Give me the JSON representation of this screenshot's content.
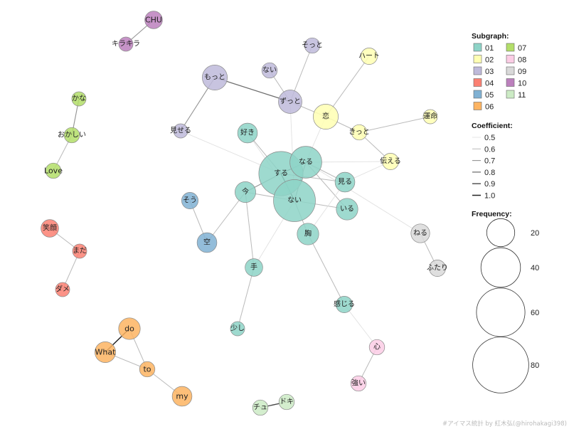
{
  "colors": {
    "01": "#8dd3c7",
    "02": "#ffffb3",
    "03": "#bebada",
    "04": "#fb8072",
    "05": "#80b1d3",
    "06": "#fdb462",
    "07": "#b3de69",
    "08": "#fccde5",
    "09": "#d9d9d9",
    "10": "#bc80bd",
    "11": "#ccebc5"
  },
  "nodes": [
    {
      "id": "CHU",
      "label": "CHU",
      "group": "10",
      "freq": 8
    },
    {
      "id": "kirakira",
      "label": "キラキラ",
      "group": "10",
      "freq": 5
    },
    {
      "id": "kana",
      "label": "かな",
      "group": "07",
      "freq": 5
    },
    {
      "id": "okashii",
      "label": "おかしい",
      "group": "07",
      "freq": 6
    },
    {
      "id": "love",
      "label": "Love",
      "group": "07",
      "freq": 6
    },
    {
      "id": "egao",
      "label": "笑顔",
      "group": "04",
      "freq": 8
    },
    {
      "id": "mada",
      "label": "まだ",
      "group": "04",
      "freq": 5
    },
    {
      "id": "dame",
      "label": "ダメ",
      "group": "04",
      "freq": 5
    },
    {
      "id": "motto",
      "label": "もっと",
      "group": "03",
      "freq": 16
    },
    {
      "id": "nai3",
      "label": "ない",
      "group": "03",
      "freq": 6
    },
    {
      "id": "sotto",
      "label": "そっと",
      "group": "03",
      "freq": 6
    },
    {
      "id": "zutto",
      "label": "ずっと",
      "group": "03",
      "freq": 14
    },
    {
      "id": "miseru",
      "label": "見せる",
      "group": "03",
      "freq": 5
    },
    {
      "id": "heart",
      "label": "ハート",
      "group": "02",
      "freq": 7
    },
    {
      "id": "koi",
      "label": "恋",
      "group": "02",
      "freq": 16
    },
    {
      "id": "kitto",
      "label": "きっと",
      "group": "02",
      "freq": 6
    },
    {
      "id": "unmei",
      "label": "運命",
      "group": "02",
      "freq": 5
    },
    {
      "id": "tsutaeru",
      "label": "伝える",
      "group": "02",
      "freq": 7
    },
    {
      "id": "suki",
      "label": "好き",
      "group": "01",
      "freq": 10
    },
    {
      "id": "naru",
      "label": "なる",
      "group": "01",
      "freq": 26
    },
    {
      "id": "suru",
      "label": "する",
      "group": "01",
      "freq": 50
    },
    {
      "id": "miru",
      "label": "見る",
      "group": "01",
      "freq": 10
    },
    {
      "id": "ima",
      "label": "今",
      "group": "01",
      "freq": 11
    },
    {
      "id": "nai",
      "label": "ない",
      "group": "01",
      "freq": 45
    },
    {
      "id": "iru",
      "label": "いる",
      "group": "01",
      "freq": 12
    },
    {
      "id": "mune",
      "label": "胸",
      "group": "01",
      "freq": 12
    },
    {
      "id": "te",
      "label": "手",
      "group": "01",
      "freq": 8
    },
    {
      "id": "kanjiru",
      "label": "感じる",
      "group": "01",
      "freq": 7
    },
    {
      "id": "sukoshi",
      "label": "少し",
      "group": "01",
      "freq": 5
    },
    {
      "id": "sou",
      "label": "そう",
      "group": "05",
      "freq": 7
    },
    {
      "id": "sora",
      "label": "空",
      "group": "05",
      "freq": 10
    },
    {
      "id": "neru",
      "label": "ねる",
      "group": "09",
      "freq": 9
    },
    {
      "id": "futari",
      "label": "ふたり",
      "group": "09",
      "freq": 7
    },
    {
      "id": "kokoro",
      "label": "心",
      "group": "08",
      "freq": 6
    },
    {
      "id": "tsuyoi",
      "label": "強い",
      "group": "08",
      "freq": 6
    },
    {
      "id": "do",
      "label": "do",
      "group": "06",
      "freq": 12
    },
    {
      "id": "what",
      "label": "What",
      "group": "06",
      "freq": 11
    },
    {
      "id": "to",
      "label": "to",
      "group": "06",
      "freq": 6
    },
    {
      "id": "my",
      "label": "my",
      "group": "06",
      "freq": 10
    },
    {
      "id": "chu2",
      "label": "チュ",
      "group": "11",
      "freq": 6
    },
    {
      "id": "doki",
      "label": "ドキ",
      "group": "11",
      "freq": 6
    }
  ],
  "edges": [
    {
      "source": "CHU",
      "target": "kirakira",
      "coef": 0.7
    },
    {
      "source": "kana",
      "target": "okashii",
      "coef": 0.7
    },
    {
      "source": "okashii",
      "target": "love",
      "coef": 0.6
    },
    {
      "source": "egao",
      "target": "mada",
      "coef": 0.6
    },
    {
      "source": "mada",
      "target": "dame",
      "coef": 0.6
    },
    {
      "source": "motto",
      "target": "zutto",
      "coef": 0.8
    },
    {
      "source": "motto",
      "target": "miseru",
      "coef": 0.7
    },
    {
      "source": "nai3",
      "target": "zutto",
      "coef": 0.6
    },
    {
      "source": "sotto",
      "target": "zutto",
      "coef": 0.6
    },
    {
      "source": "zutto",
      "target": "koi",
      "coef": 0.6
    },
    {
      "source": "zutto",
      "target": "nai",
      "coef": 0.5
    },
    {
      "source": "heart",
      "target": "koi",
      "coef": 0.6
    },
    {
      "source": "koi",
      "target": "kitto",
      "coef": 0.6
    },
    {
      "source": "koi",
      "target": "naru",
      "coef": 0.5
    },
    {
      "source": "kitto",
      "target": "unmei",
      "coef": 0.6
    },
    {
      "source": "kitto",
      "target": "tsutaeru",
      "coef": 0.6
    },
    {
      "source": "tsutaeru",
      "target": "naru",
      "coef": 0.5
    },
    {
      "source": "tsutaeru",
      "target": "miru",
      "coef": 0.5
    },
    {
      "source": "miseru",
      "target": "suru",
      "coef": 0.5
    },
    {
      "source": "suki",
      "target": "suru",
      "coef": 0.6
    },
    {
      "source": "suki",
      "target": "nai",
      "coef": 0.5
    },
    {
      "source": "suru",
      "target": "naru",
      "coef": 0.8
    },
    {
      "source": "suru",
      "target": "nai",
      "coef": 0.9
    },
    {
      "source": "suru",
      "target": "ima",
      "coef": 0.7
    },
    {
      "source": "suru",
      "target": "miru",
      "coef": 0.6
    },
    {
      "source": "naru",
      "target": "nai",
      "coef": 0.7
    },
    {
      "source": "naru",
      "target": "miru",
      "coef": 0.6
    },
    {
      "source": "naru",
      "target": "iru",
      "coef": 0.6
    },
    {
      "source": "nai",
      "target": "ima",
      "coef": 0.6
    },
    {
      "source": "nai",
      "target": "iru",
      "coef": 0.6
    },
    {
      "source": "nai",
      "target": "mune",
      "coef": 0.6
    },
    {
      "source": "nai",
      "target": "te",
      "coef": 0.5
    },
    {
      "source": "ima",
      "target": "sora",
      "coef": 0.6
    },
    {
      "source": "ima",
      "target": "te",
      "coef": 0.6
    },
    {
      "source": "mune",
      "target": "kanjiru",
      "coef": 0.6
    },
    {
      "source": "mune",
      "target": "miru",
      "coef": 0.5
    },
    {
      "source": "te",
      "target": "sukoshi",
      "coef": 0.6
    },
    {
      "source": "sou",
      "target": "sora",
      "coef": 0.6
    },
    {
      "source": "kanjiru",
      "target": "kokoro",
      "coef": 0.5
    },
    {
      "source": "kokoro",
      "target": "tsuyoi",
      "coef": 0.6
    },
    {
      "source": "neru",
      "target": "futari",
      "coef": 0.6
    },
    {
      "source": "neru",
      "target": "naru",
      "coef": 0.5
    },
    {
      "source": "do",
      "target": "what",
      "coef": 1.0
    },
    {
      "source": "do",
      "target": "to",
      "coef": 0.6
    },
    {
      "source": "what",
      "target": "to",
      "coef": 0.6
    },
    {
      "source": "to",
      "target": "my",
      "coef": 0.6
    },
    {
      "source": "chu2",
      "target": "doki",
      "coef": 0.9
    }
  ],
  "legend": {
    "subgraph_title": "Subgraph:",
    "subgraph_items": [
      "01",
      "02",
      "03",
      "04",
      "05",
      "06",
      "07",
      "08",
      "09",
      "10",
      "11"
    ],
    "coef_title": "Coefficient:",
    "coef_items": [
      "0.5",
      "0.6",
      "0.7",
      "0.8",
      "0.9",
      "1.0"
    ],
    "freq_title": "Frequency:",
    "freq_items": [
      "20",
      "40",
      "60",
      "80"
    ]
  },
  "credit": "#アイマス統計 by 紅木弘(@hirohakagi398)"
}
